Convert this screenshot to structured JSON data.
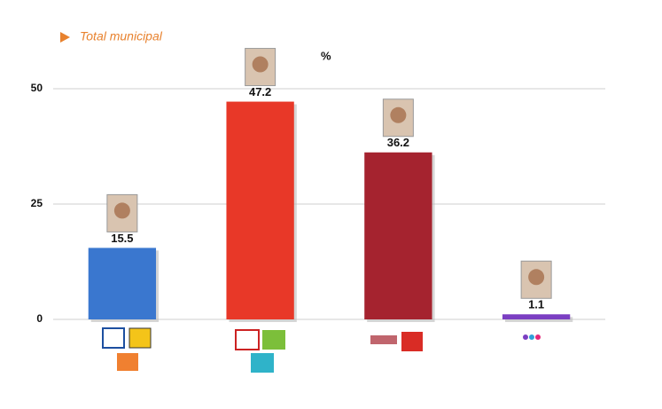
{
  "chart_data": {
    "type": "bar",
    "title": "Total municipal",
    "annotation": "%",
    "categories": [
      null,
      null,
      null,
      null
    ],
    "values": [
      15.5,
      47.2,
      36.2,
      1.1
    ],
    "colors": [
      "#3a77cf",
      "#e83828",
      "#a5232f",
      "#7b3fc2"
    ],
    "ylim": [
      0,
      60
    ],
    "yticks": [
      0,
      25,
      50
    ],
    "grid": true
  }
}
